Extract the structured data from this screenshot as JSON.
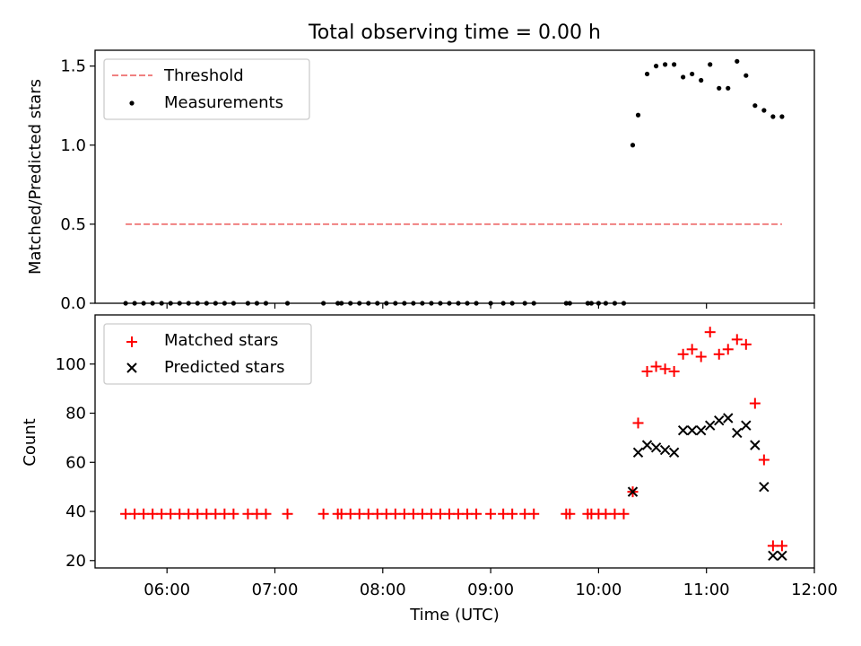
{
  "figure": {
    "title": "Total observing time = 0.00 h"
  },
  "chart_data": [
    {
      "type": "scatter",
      "ylabel": "Matched/Predicted stars",
      "xlabel": "",
      "xlim": [
        "05:20",
        "12:00"
      ],
      "ylim": [
        0,
        1.6
      ],
      "yticks": [
        {
          "value": 0,
          "label": "0.0"
        },
        {
          "value": 0.5,
          "label": "0.5"
        },
        {
          "value": 1.0,
          "label": "1.0"
        },
        {
          "value": 1.5,
          "label": "1.5"
        }
      ],
      "legend": {
        "position": "top-left"
      },
      "grid": false,
      "threshold": {
        "name": "Threshold",
        "value": 0.5,
        "x_range": [
          "05:37",
          "11:42"
        ],
        "color": "#f08080",
        "style": "dashed"
      },
      "series": [
        {
          "name": "Measurements",
          "marker": "dot",
          "color": "#000000",
          "x": [
            "05:37",
            "05:42",
            "05:47",
            "05:52",
            "05:57",
            "06:02",
            "06:07",
            "06:12",
            "06:17",
            "06:22",
            "06:27",
            "06:32",
            "06:37",
            "06:45",
            "06:50",
            "06:55",
            "07:07",
            "07:27",
            "07:35",
            "07:37",
            "07:42",
            "07:47",
            "07:52",
            "07:57",
            "08:02",
            "08:07",
            "08:12",
            "08:17",
            "08:22",
            "08:27",
            "08:32",
            "08:37",
            "08:42",
            "08:47",
            "08:52",
            "09:00",
            "09:07",
            "09:12",
            "09:19",
            "09:24",
            "09:42",
            "09:44",
            "09:54",
            "09:56",
            "10:00",
            "10:04",
            "10:09",
            "10:14",
            "10:19",
            "10:22",
            "10:27",
            "10:32",
            "10:37",
            "10:42",
            "10:47",
            "10:52",
            "10:57",
            "11:02",
            "11:07",
            "11:12",
            "11:17",
            "11:22",
            "11:27",
            "11:32",
            "11:37",
            "11:42"
          ],
          "y": [
            0,
            0,
            0,
            0,
            0,
            0,
            0,
            0,
            0,
            0,
            0,
            0,
            0,
            0,
            0,
            0,
            0,
            0,
            0,
            0,
            0,
            0,
            0,
            0,
            0,
            0,
            0,
            0,
            0,
            0,
            0,
            0,
            0,
            0,
            0,
            0,
            0,
            0,
            0,
            0,
            0,
            0,
            0,
            0,
            0,
            0,
            0,
            0,
            1.0,
            1.19,
            1.45,
            1.5,
            1.51,
            1.51,
            1.43,
            1.45,
            1.41,
            1.51,
            1.36,
            1.36,
            1.53,
            1.44,
            1.25,
            1.22,
            1.18,
            1.18
          ]
        }
      ]
    },
    {
      "type": "scatter",
      "ylabel": "Count",
      "xlabel": "Time (UTC)",
      "xlim": [
        "05:20",
        "12:00"
      ],
      "ylim": [
        17,
        120
      ],
      "xticks": [
        "06:00",
        "07:00",
        "08:00",
        "09:00",
        "10:00",
        "11:00",
        "12:00"
      ],
      "yticks": [
        {
          "value": 20,
          "label": "20"
        },
        {
          "value": 40,
          "label": "40"
        },
        {
          "value": 60,
          "label": "60"
        },
        {
          "value": 80,
          "label": "80"
        },
        {
          "value": 100,
          "label": "100"
        }
      ],
      "legend": {
        "position": "top-left"
      },
      "grid": false,
      "series": [
        {
          "name": "Matched stars",
          "marker": "plus",
          "color": "#ff0000",
          "x": [
            "05:37",
            "05:42",
            "05:47",
            "05:52",
            "05:57",
            "06:02",
            "06:07",
            "06:12",
            "06:17",
            "06:22",
            "06:27",
            "06:32",
            "06:37",
            "06:45",
            "06:50",
            "06:55",
            "07:07",
            "07:27",
            "07:35",
            "07:37",
            "07:42",
            "07:47",
            "07:52",
            "07:57",
            "08:02",
            "08:07",
            "08:12",
            "08:17",
            "08:22",
            "08:27",
            "08:32",
            "08:37",
            "08:42",
            "08:47",
            "08:52",
            "09:00",
            "09:07",
            "09:12",
            "09:19",
            "09:24",
            "09:42",
            "09:44",
            "09:54",
            "09:56",
            "10:00",
            "10:04",
            "10:09",
            "10:14",
            "10:19",
            "10:22",
            "10:27",
            "10:32",
            "10:37",
            "10:42",
            "10:47",
            "10:52",
            "10:57",
            "11:02",
            "11:07",
            "11:12",
            "11:17",
            "11:22",
            "11:27",
            "11:32",
            "11:37",
            "11:42"
          ],
          "y": [
            39,
            39,
            39,
            39,
            39,
            39,
            39,
            39,
            39,
            39,
            39,
            39,
            39,
            39,
            39,
            39,
            39,
            39,
            39,
            39,
            39,
            39,
            39,
            39,
            39,
            39,
            39,
            39,
            39,
            39,
            39,
            39,
            39,
            39,
            39,
            39,
            39,
            39,
            39,
            39,
            39,
            39,
            39,
            39,
            39,
            39,
            39,
            39,
            48,
            76,
            97,
            99,
            98,
            97,
            104,
            106,
            103,
            113,
            104,
            106,
            110,
            108,
            84,
            61,
            26,
            26
          ]
        },
        {
          "name": "Predicted stars",
          "marker": "x",
          "color": "#000000",
          "x": [
            "10:19",
            "10:22",
            "10:27",
            "10:32",
            "10:37",
            "10:42",
            "10:47",
            "10:52",
            "10:57",
            "11:02",
            "11:07",
            "11:12",
            "11:17",
            "11:22",
            "11:27",
            "11:32",
            "11:37",
            "11:42"
          ],
          "y": [
            48,
            64,
            67,
            66,
            65,
            64,
            73,
            73,
            73,
            75,
            77,
            78,
            72,
            75,
            67,
            50,
            22,
            22
          ]
        }
      ]
    }
  ]
}
